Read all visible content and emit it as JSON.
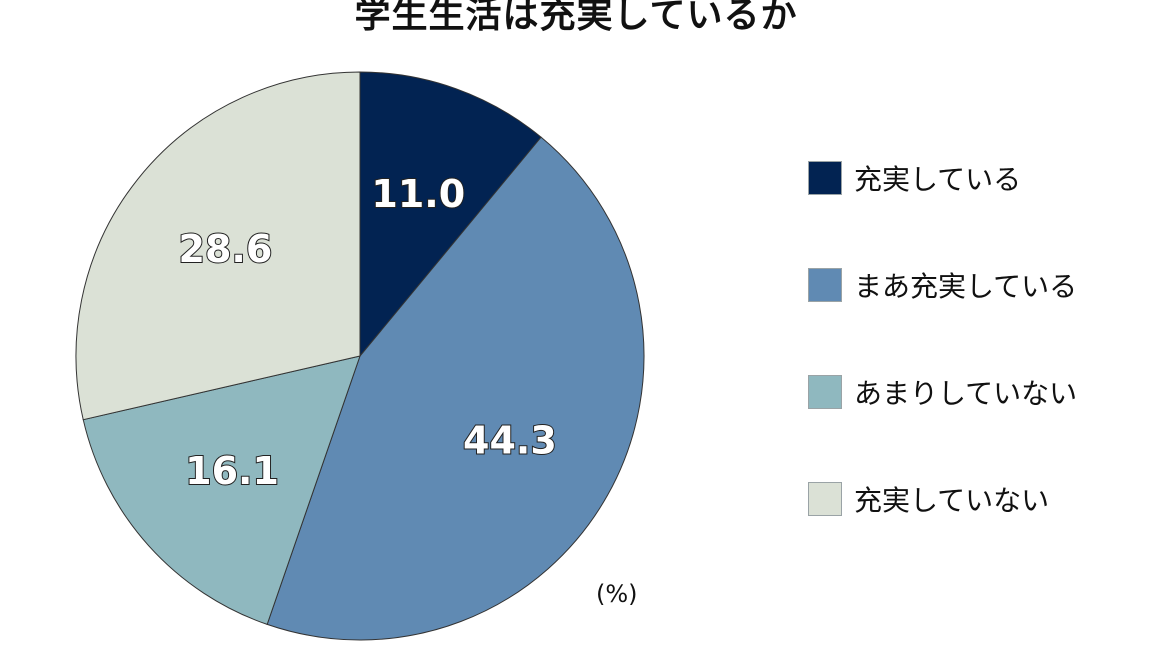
{
  "chart_data": {
    "type": "pie",
    "title": "学生生活は充実しているか",
    "unit_label": "(%)",
    "legend_position": "right",
    "slices": [
      {
        "label": "充実している",
        "value": 11.0,
        "value_label": "11.0",
        "color": "#022352"
      },
      {
        "label": "まあ充実している",
        "value": 44.3,
        "value_label": "44.3",
        "color": "#608ab3"
      },
      {
        "label": "あまりしていない",
        "value": 16.1,
        "value_label": "16.1",
        "color": "#8fb8bf"
      },
      {
        "label": "充実していない",
        "value": 28.6,
        "value_label": "28.6",
        "color": "#dbe1d6"
      }
    ]
  }
}
